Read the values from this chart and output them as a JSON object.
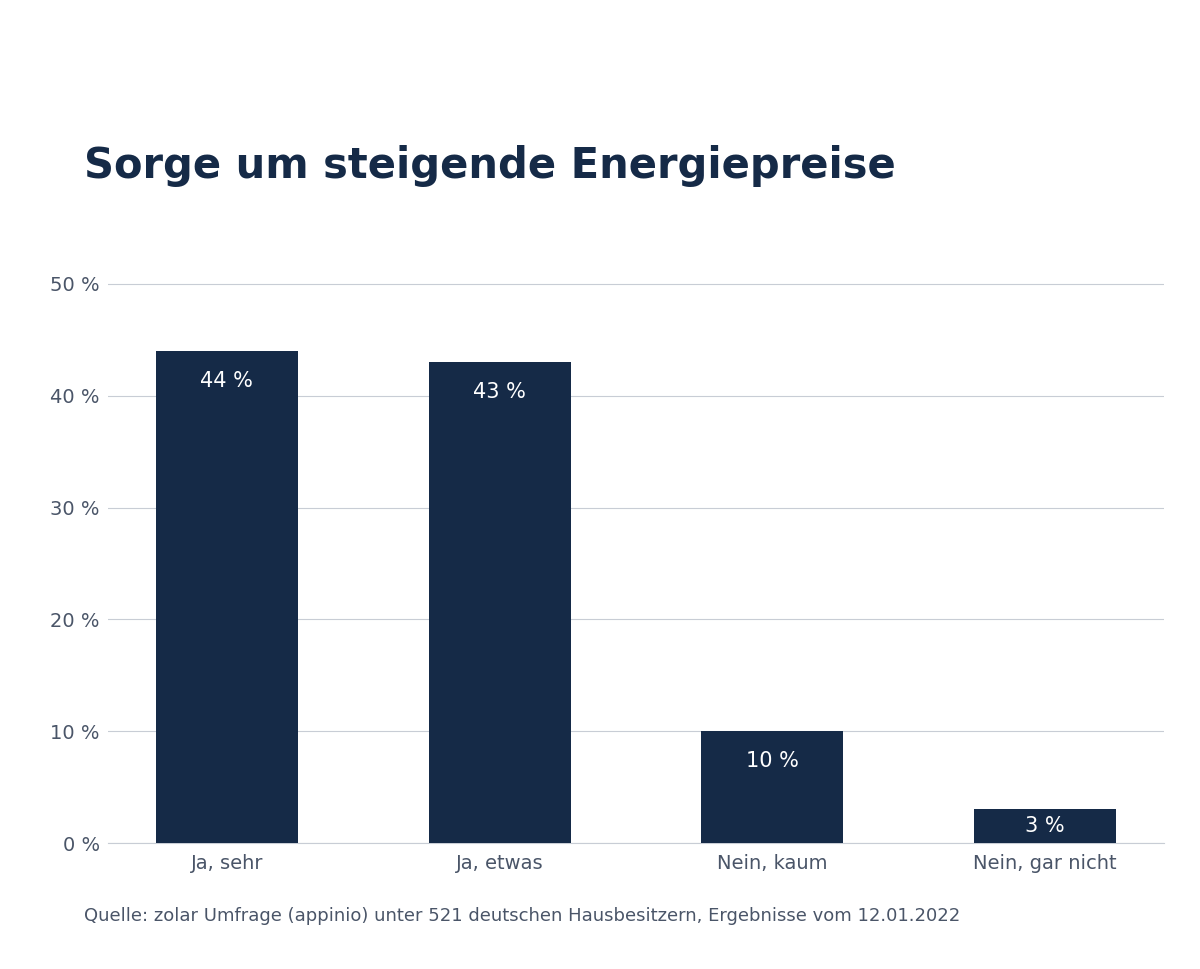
{
  "title": "Sorge um steigende Energiepreise",
  "categories": [
    "Ja, sehr",
    "Ja, etwas",
    "Nein, kaum",
    "Nein, gar nicht"
  ],
  "values": [
    44,
    43,
    10,
    3
  ],
  "labels": [
    "44 %",
    "43 %",
    "10 %",
    "3 %"
  ],
  "bar_color": "#152a47",
  "label_color": "#ffffff",
  "background_color": "#ffffff",
  "title_color": "#152a47",
  "axis_label_color": "#4a5568",
  "grid_color": "#c8cdd5",
  "ylim": [
    0,
    52
  ],
  "yticks": [
    0,
    10,
    20,
    30,
    40,
    50
  ],
  "ytick_labels": [
    "0 %",
    "10 %",
    "20 %",
    "30 %",
    "40 %",
    "50 %"
  ],
  "footnote": "Quelle: zolar Umfrage (appinio) unter 521 deutschen Hausbesitzern, Ergebnisse vom 12.01.2022",
  "title_fontsize": 30,
  "label_fontsize": 15,
  "tick_fontsize": 14,
  "footnote_fontsize": 13,
  "bar_width": 0.52
}
